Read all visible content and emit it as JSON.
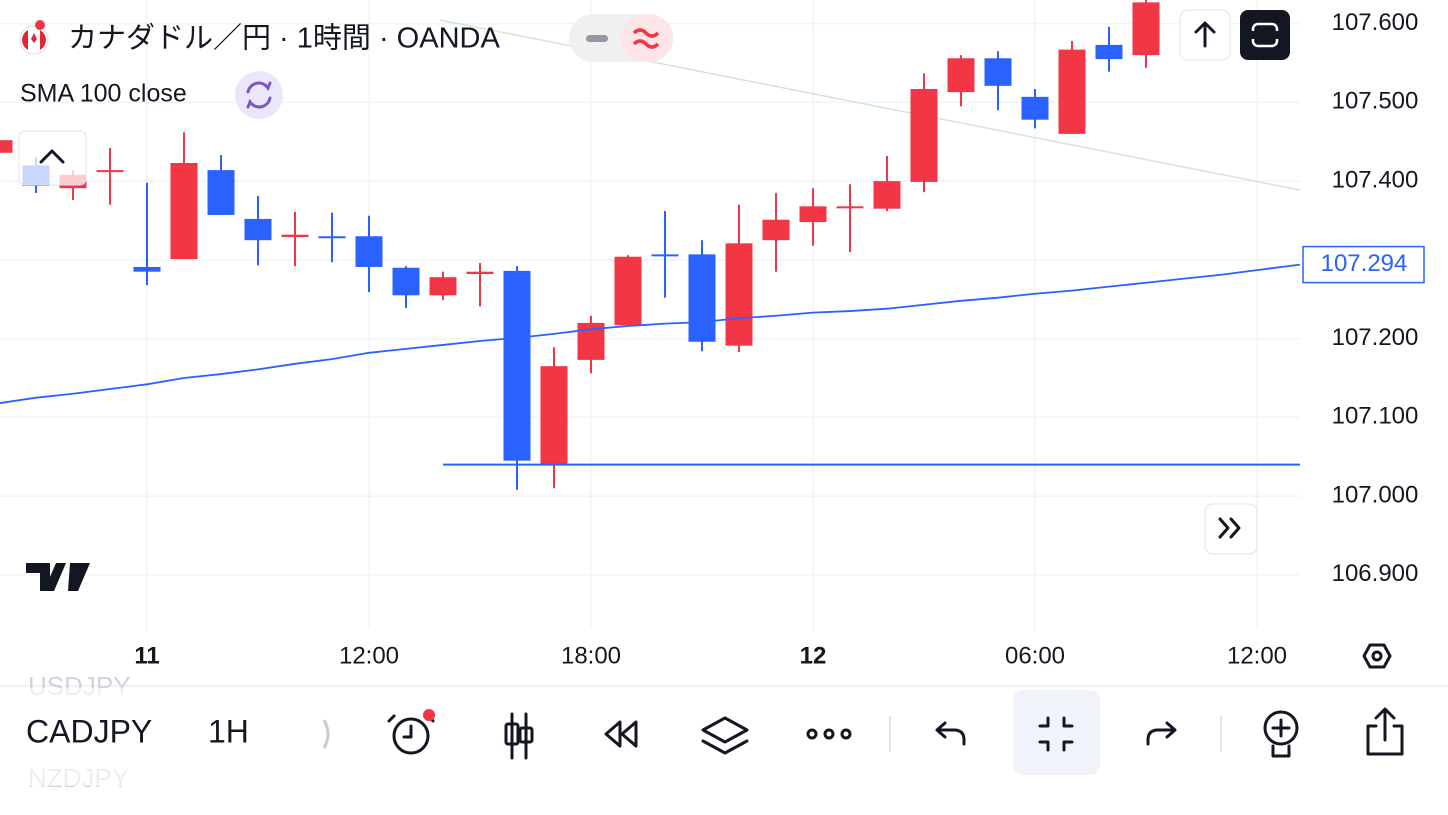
{
  "header": {
    "title": "カナダドル／円 · 1時間 · OANDA"
  },
  "chart_data": {
    "type": "candlestick",
    "categories": [
      null,
      null,
      null,
      null,
      "11",
      null,
      null,
      null,
      null,
      null,
      "12:00",
      null,
      null,
      null,
      null,
      null,
      "18:00",
      null,
      null,
      null,
      null,
      null,
      "12",
      null,
      null,
      null,
      null,
      null,
      "06:00",
      null,
      null,
      null,
      null,
      null,
      "12:00"
    ],
    "open": [
      107.436,
      107.42,
      107.391,
      107.413,
      107.291,
      107.301,
      107.414,
      107.352,
      107.329,
      107.33,
      107.33,
      107.29,
      107.255,
      107.282,
      107.286,
      107.04,
      107.173,
      107.217,
      107.307,
      107.307,
      107.191,
      107.325,
      107.348,
      107.367,
      107.365,
      107.399,
      107.513,
      107.556,
      107.507,
      107.46,
      107.573,
      107.56,
      null,
      null,
      null
    ],
    "high": [
      107.455,
      107.43,
      107.414,
      107.442,
      107.398,
      107.462,
      107.433,
      107.381,
      107.361,
      107.36,
      107.356,
      107.292,
      107.285,
      107.296,
      107.292,
      107.189,
      107.229,
      107.306,
      107.362,
      107.325,
      107.37,
      107.385,
      107.391,
      107.396,
      107.432,
      107.537,
      107.56,
      107.565,
      107.517,
      107.578,
      107.596,
      107.63,
      null,
      null,
      null
    ],
    "low": [
      107.433,
      107.385,
      107.376,
      107.37,
      107.268,
      107.301,
      107.357,
      107.293,
      107.292,
      107.297,
      107.259,
      107.239,
      107.249,
      107.241,
      107.008,
      107.01,
      107.156,
      107.217,
      107.252,
      107.184,
      107.183,
      107.285,
      107.318,
      107.31,
      107.362,
      107.386,
      107.495,
      107.49,
      107.467,
      107.46,
      107.539,
      107.544,
      null,
      null,
      null
    ],
    "close": [
      107.452,
      107.394,
      107.408,
      107.414,
      107.285,
      107.423,
      107.357,
      107.325,
      107.332,
      107.328,
      107.291,
      107.255,
      107.278,
      107.285,
      107.045,
      107.165,
      107.22,
      107.304,
      107.305,
      107.196,
      107.321,
      107.351,
      107.368,
      107.368,
      107.4,
      107.517,
      107.556,
      107.521,
      107.478,
      107.567,
      107.555,
      107.627,
      null,
      null,
      null
    ],
    "up_color": "#f23645",
    "down_color": "#2962ff",
    "sma": {
      "name": "SMA 100 close",
      "color": "#2962ff",
      "values": [
        107.118,
        107.125,
        107.13,
        107.136,
        107.142,
        107.15,
        107.155,
        107.161,
        107.168,
        107.174,
        107.182,
        107.187,
        107.192,
        107.197,
        107.201,
        107.206,
        107.212,
        107.216,
        107.219,
        107.221,
        107.226,
        107.229,
        107.233,
        107.235,
        107.238,
        107.243,
        107.248,
        107.252,
        107.257,
        107.261,
        107.266,
        107.271,
        107.276,
        107.281,
        107.287
      ],
      "last_value": 107.294
    },
    "hline": 107.04,
    "ylim": [
      106.83,
      107.63
    ],
    "yticks": [
      {
        "value": 106.9,
        "label": "106.900"
      },
      {
        "value": 107.0,
        "label": "107.000"
      },
      {
        "value": 107.1,
        "label": "107.100"
      },
      {
        "value": 107.2,
        "label": "107.200"
      },
      {
        "value": 107.3,
        "label": "107.300"
      },
      {
        "value": 107.4,
        "label": "107.400"
      },
      {
        "value": 107.5,
        "label": "107.500"
      },
      {
        "value": 107.6,
        "label": "107.600"
      }
    ],
    "grid": true
  },
  "toolbar": {
    "prev_symbol": "USDJPY",
    "symbol": "CADJPY",
    "next_symbol": "NZDJPY",
    "interval": "1H"
  }
}
